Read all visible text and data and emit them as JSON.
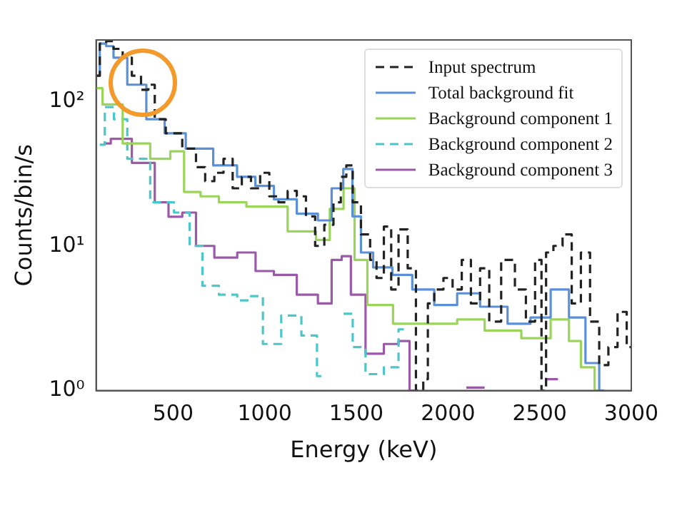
{
  "chart_data": {
    "type": "step",
    "xlabel": "Energy (keV)",
    "ylabel": "Counts/bin/s",
    "log": "y",
    "grid": false,
    "legend": "top right",
    "xlim": [
      80,
      3000
    ],
    "xticks": [
      500,
      1000,
      1500,
      2000,
      2500,
      3000
    ],
    "ylim": [
      1,
      265
    ],
    "yticks": [
      {
        "value": 1,
        "label": "10⁰"
      },
      {
        "value": 10,
        "label": "10¹"
      },
      {
        "value": 100,
        "label": "10²"
      }
    ],
    "series": [
      {
        "name": "Input spectrum",
        "color": "#222222",
        "line_style": "dashed",
        "x": [
          80,
          120,
          150,
          200,
          250,
          300,
          350,
          380,
          420,
          500,
          600,
          650,
          700,
          750,
          800,
          850,
          900,
          950,
          1000,
          1050,
          1100,
          1150,
          1200,
          1250,
          1300,
          1350,
          1400,
          1430,
          1460,
          1500,
          1550,
          1600,
          1620,
          1680,
          1700,
          1760,
          1800,
          1850,
          1880,
          1900,
          1950,
          2000,
          2050,
          2100,
          2150,
          2200,
          2250,
          2330,
          2400,
          2450,
          2500,
          2520,
          2550,
          2600,
          2650,
          2700,
          2750,
          2800,
          2850,
          2900,
          2950,
          3000
        ],
        "values": [
          150,
          250,
          260,
          230,
          200,
          150,
          120,
          130,
          75,
          60,
          47,
          35,
          28,
          32,
          40,
          25,
          30,
          25,
          32,
          22,
          20,
          24,
          22,
          16,
          10,
          14,
          20,
          30,
          36,
          20,
          12,
          8,
          6,
          13.6,
          5,
          13,
          7,
          1,
          1.2,
          4,
          5,
          6,
          5,
          8,
          4,
          7,
          3,
          8,
          5,
          3,
          8,
          1,
          9,
          10,
          12,
          4,
          9,
          3,
          1.5,
          2,
          3.5,
          2
        ]
      },
      {
        "name": "Total background fit",
        "color": "#5b8fd6",
        "x": [
          80,
          120,
          150,
          200,
          300,
          408,
          500,
          638,
          800,
          898,
          1000,
          1100,
          1250,
          1330,
          1400,
          1457,
          1500,
          1550,
          1633,
          1760,
          1850,
          2000,
          2100,
          2250,
          2400,
          2500,
          2620,
          2700,
          2800,
          2850
        ],
        "values": [
          150,
          250,
          240,
          200,
          130,
          75,
          60,
          47,
          36,
          30,
          26,
          21,
          16.7,
          15,
          25,
          34,
          16,
          9,
          7.1,
          6.3,
          5,
          3.9,
          4.7,
          3.8,
          2.9,
          3.2,
          5,
          3.2,
          1.55,
          1
        ]
      },
      {
        "name": "Background component 1",
        "color": "#9ad55a",
        "x": [
          80,
          150,
          300,
          450,
          520,
          600,
          700,
          800,
          1000,
          1250,
          1310,
          1400,
          1460,
          1520,
          1600,
          1800,
          2000,
          2100,
          2300,
          2500,
          2620,
          2700,
          2750,
          2850
        ],
        "values": [
          123,
          95,
          51,
          40,
          45,
          23.6,
          22,
          20,
          18.7,
          12.6,
          11,
          18,
          25,
          8,
          3.9,
          2.9,
          2.9,
          3.1,
          2.6,
          2.3,
          3.1,
          2.2,
          1.45,
          1
        ]
      },
      {
        "name": "Background component 2",
        "color": "#4cc7c9",
        "line_style": "dashed",
        "x": [
          100,
          155,
          200,
          300,
          450,
          560,
          620,
          700,
          800,
          900,
          950,
          1030,
          1150,
          1250,
          1320,
          1350,
          1430,
          1460,
          1500,
          1600,
          1700,
          1760
        ],
        "values": [
          50,
          91,
          75,
          40,
          20,
          17,
          10,
          5.3,
          4.6,
          4.2,
          4.5,
          2.1,
          3.3,
          2.4,
          1.26,
          null,
          3.4,
          3.4,
          2,
          1.3,
          1.45,
          2.65
        ]
      },
      {
        "name": "Background component 3",
        "color": "#9b5aa8",
        "x": [
          120,
          200,
          350,
          450,
          500,
          600,
          650,
          800,
          900,
          1000,
          1100,
          1250,
          1330,
          1400,
          1440,
          1500,
          1600,
          1700,
          1760,
          1820,
          1900,
          2100,
          2200,
          2300,
          2540,
          2600
        ],
        "values": [
          51,
          55,
          37.5,
          20,
          15.9,
          17,
          10,
          8.3,
          9,
          6.7,
          6.3,
          4.6,
          4,
          8,
          8.5,
          4.6,
          1.8,
          2.1,
          2.2,
          1,
          null,
          1.05,
          1.05,
          null,
          1.2,
          1.2
        ]
      }
    ]
  }
}
